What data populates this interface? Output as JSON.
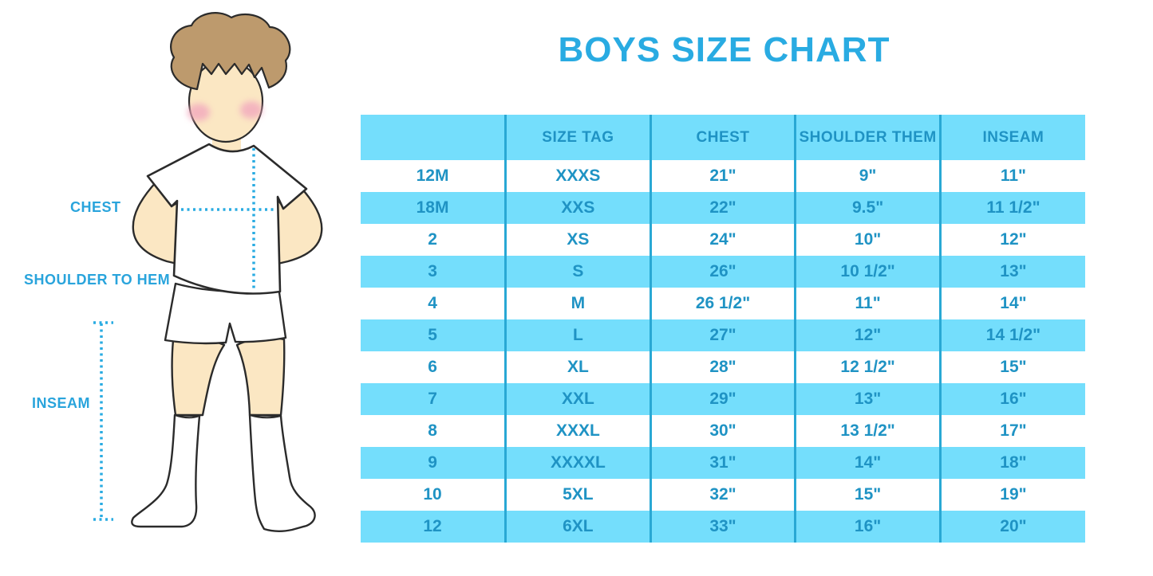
{
  "title": "BOYS SIZE CHART",
  "diagram": {
    "chest_label": "CHEST",
    "shoulder_to_hem_label": "SHOULDER TO HEM",
    "inseam_label": "INSEAM",
    "figure": "cartoon boy in white t-shirt, white shorts and white knee socks with dotted measurement guide lines"
  },
  "chart_data": {
    "type": "table",
    "title": "BOYS SIZE CHART",
    "columns": [
      "",
      "SIZE TAG",
      "CHEST",
      "SHOULDER THEM",
      "INSEAM"
    ],
    "rows": [
      [
        "12M",
        "XXXS",
        "21\"",
        "9\"",
        "11\""
      ],
      [
        "18M",
        "XXS",
        "22\"",
        "9.5\"",
        "11 1/2\""
      ],
      [
        "2",
        "XS",
        "24\"",
        "10\"",
        "12\""
      ],
      [
        "3",
        "S",
        "26\"",
        "10 1/2\"",
        "13\""
      ],
      [
        "4",
        "M",
        "26 1/2\"",
        "11\"",
        "14\""
      ],
      [
        "5",
        "L",
        "27\"",
        "12\"",
        "14 1/2\""
      ],
      [
        "6",
        "XL",
        "28\"",
        "12 1/2\"",
        "15\""
      ],
      [
        "7",
        "XXL",
        "29\"",
        "13\"",
        "16\""
      ],
      [
        "8",
        "XXXL",
        "30\"",
        "13 1/2\"",
        "17\""
      ],
      [
        "9",
        "XXXXL",
        "31\"",
        "14\"",
        "18\""
      ],
      [
        "10",
        "5XL",
        "32\"",
        "15\"",
        "19\""
      ],
      [
        "12",
        "6XL",
        "33\"",
        "16\"",
        "20\""
      ]
    ],
    "layout_hints": {
      "header_background": "light blue",
      "row_striping": "white / light blue alternating, first data row white",
      "column_dividers": "vertical dark-cyan lines, no outer border"
    }
  },
  "colors": {
    "title_blue": "#29ABE2",
    "label_blue": "#29A4DC",
    "stripe_blue": "#74DEFC",
    "cell_text": "#1F93C4",
    "divider": "#29A8D4",
    "dotted_line": "#29ABE2",
    "hair": "#BD9A6D",
    "skin": "#FBE7C3",
    "cheek": "#F2A8BE",
    "outline": "#2B2B2B"
  }
}
